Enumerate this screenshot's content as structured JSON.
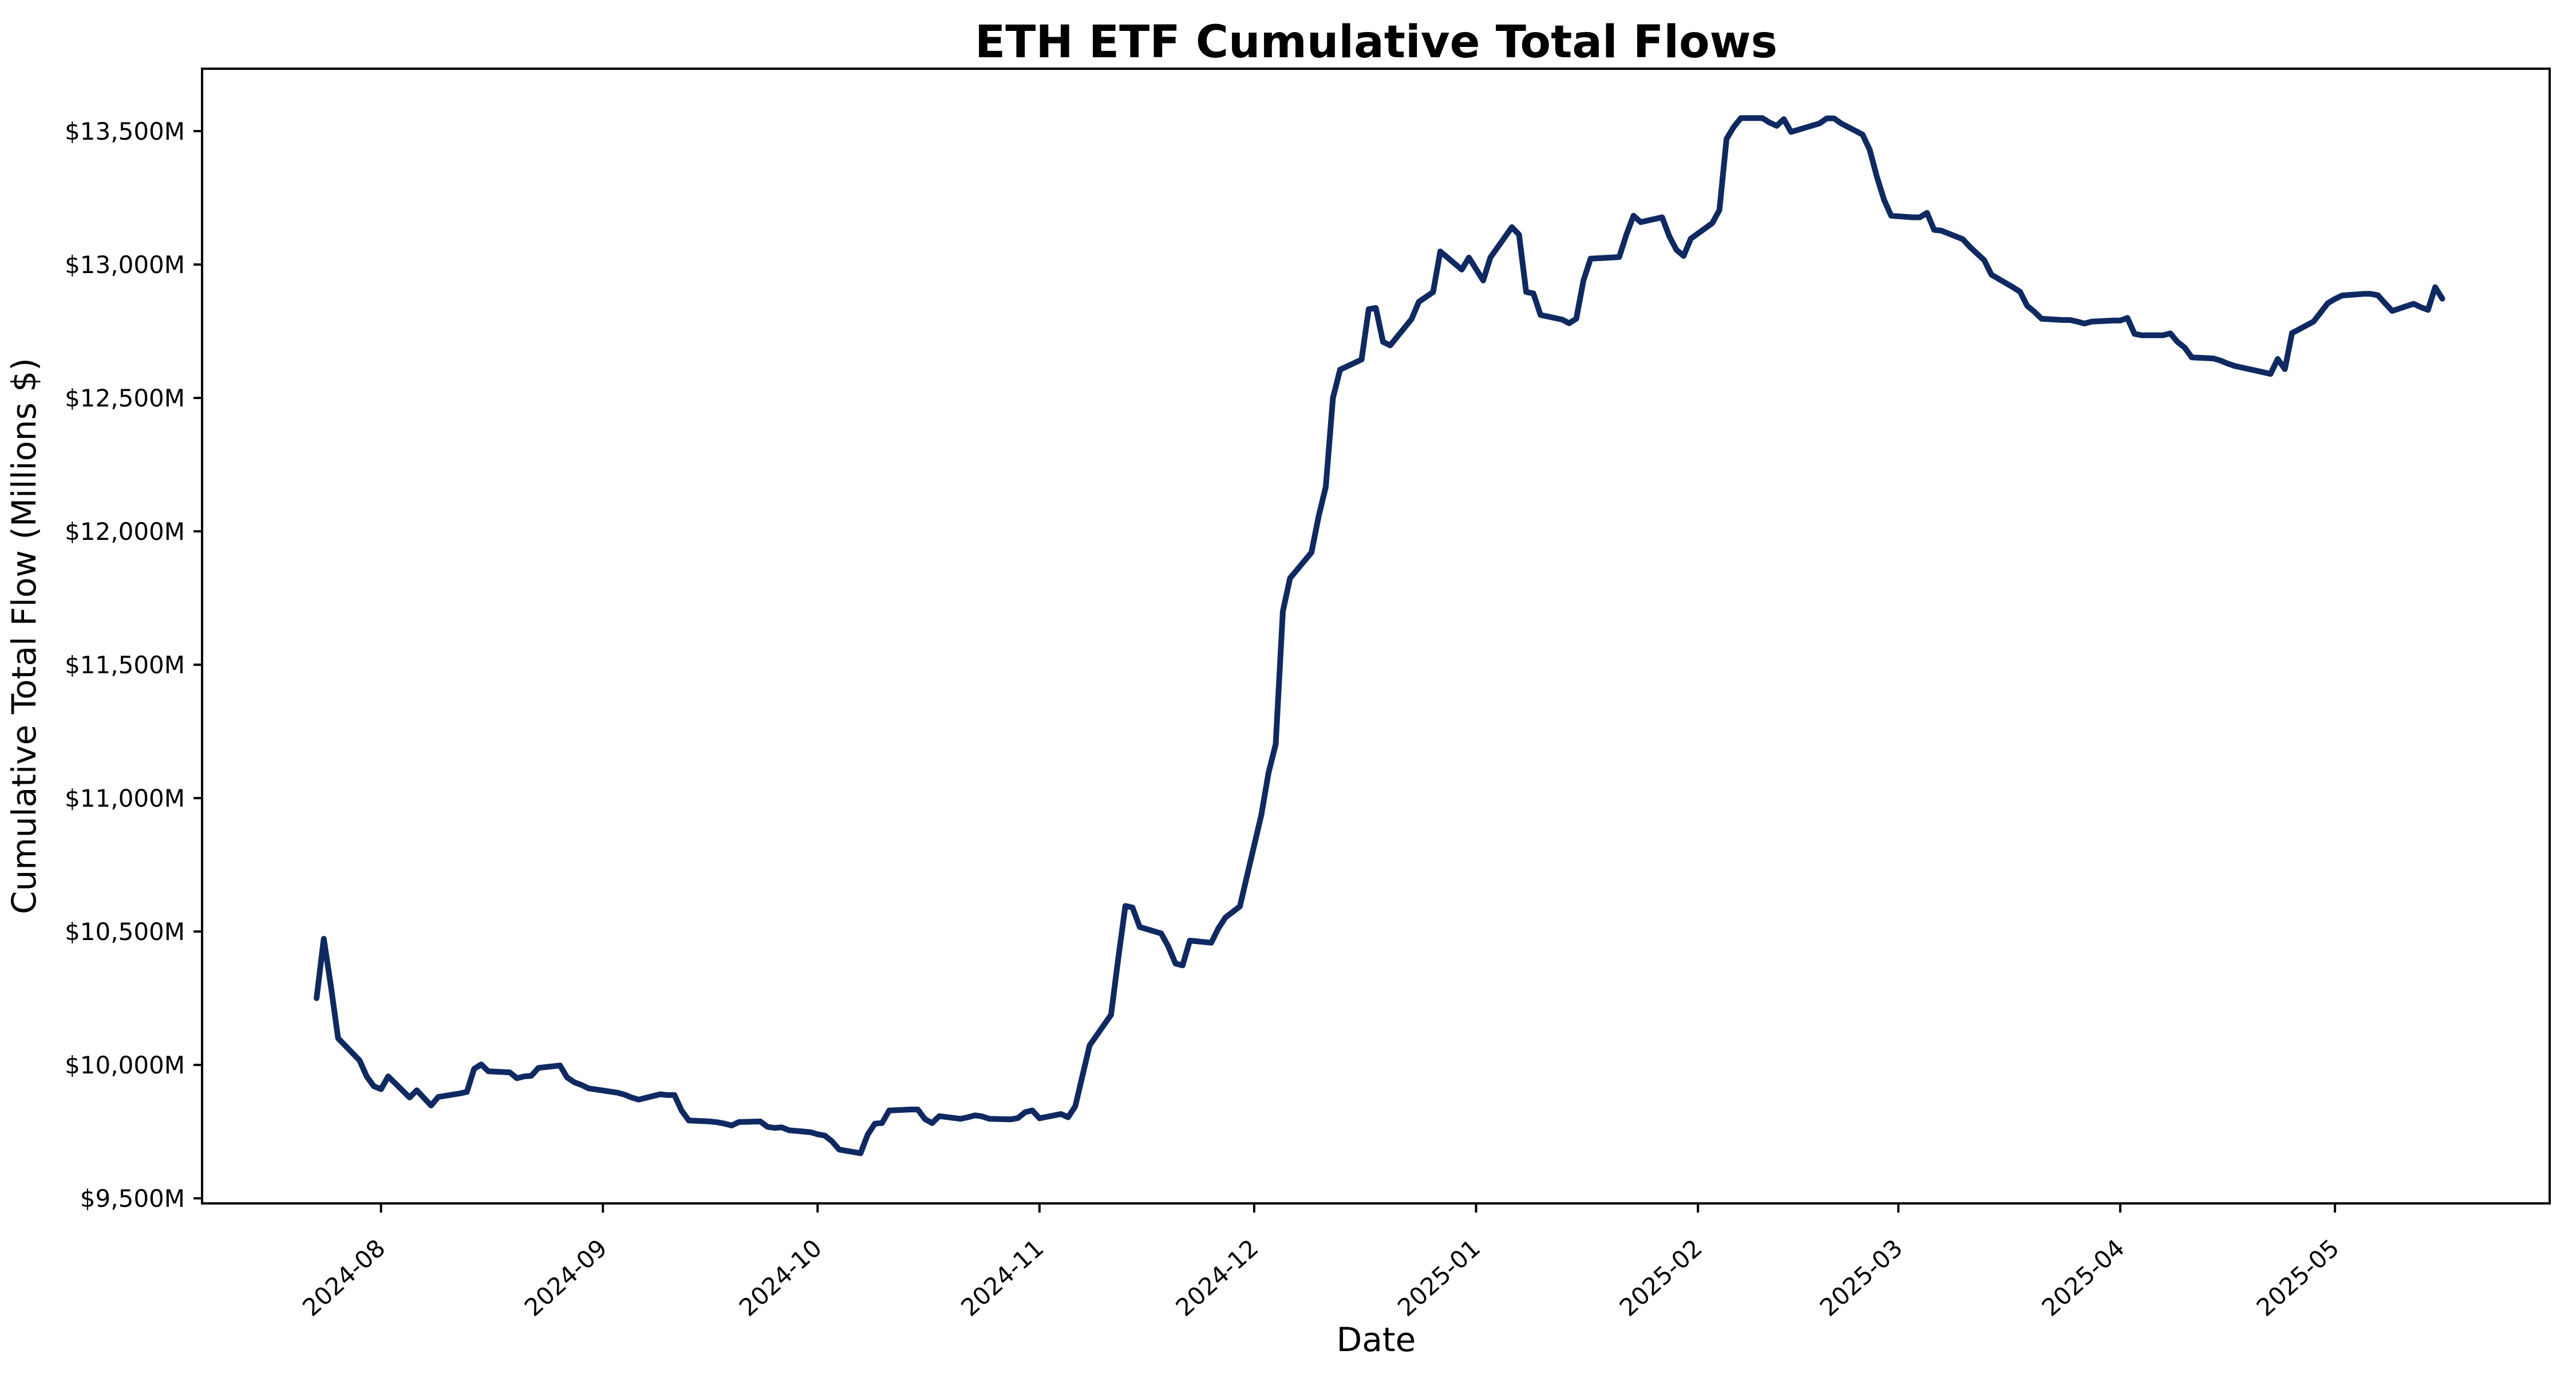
{
  "chart_data": {
    "type": "line",
    "title": "ETH ETF Cumulative Total Flows",
    "xlabel": "Date",
    "ylabel": "Cumulative Total Flow (Millions $)",
    "grid": false,
    "legend_position": "none",
    "background_color": "#ffffff",
    "line_color": "#0f2a63",
    "spine_color": "#000000",
    "ylim": [
      9481,
      13734
    ],
    "xlim": [
      "2024-07-07",
      "2025-05-31"
    ],
    "y_ticks": [
      9500,
      10000,
      10500,
      11000,
      11500,
      12000,
      12500,
      13000,
      13500
    ],
    "y_tick_labels": [
      "$9,500M",
      "$10,000M",
      "$10,500M",
      "$11,000M",
      "$11,500M",
      "$12,000M",
      "$12,500M",
      "$13,000M",
      "$13,500M"
    ],
    "x_ticks": [
      "2024-08-01",
      "2024-09-01",
      "2024-10-01",
      "2024-11-01",
      "2024-12-01",
      "2025-01-01",
      "2025-02-01",
      "2025-03-01",
      "2025-04-01",
      "2025-05-01"
    ],
    "x_tick_labels": [
      "2024-08",
      "2024-09",
      "2024-10",
      "2024-11",
      "2024-12",
      "2025-01",
      "2025-02",
      "2025-03",
      "2025-04",
      "2025-05"
    ],
    "series": [
      {
        "name": "Cumulative Total Flow",
        "points": [
          [
            "2024-07-23",
            10250
          ],
          [
            "2024-07-24",
            10473
          ],
          [
            "2024-07-25",
            10295
          ],
          [
            "2024-07-26",
            10100
          ],
          [
            "2024-07-29",
            10017
          ],
          [
            "2024-07-30",
            9957
          ],
          [
            "2024-07-31",
            9920
          ],
          [
            "2024-08-01",
            9909
          ],
          [
            "2024-08-02",
            9957
          ],
          [
            "2024-08-05",
            9878
          ],
          [
            "2024-08-06",
            9905
          ],
          [
            "2024-08-07",
            9876
          ],
          [
            "2024-08-08",
            9848
          ],
          [
            "2024-08-09",
            9880
          ],
          [
            "2024-08-12",
            9893
          ],
          [
            "2024-08-13",
            9899
          ],
          [
            "2024-08-14",
            9985
          ],
          [
            "2024-08-15",
            10002
          ],
          [
            "2024-08-16",
            9976
          ],
          [
            "2024-08-19",
            9972
          ],
          [
            "2024-08-20",
            9950
          ],
          [
            "2024-08-21",
            9957
          ],
          [
            "2024-08-22",
            9959
          ],
          [
            "2024-08-23",
            9989
          ],
          [
            "2024-08-26",
            9998
          ],
          [
            "2024-08-27",
            9953
          ],
          [
            "2024-08-28",
            9935
          ],
          [
            "2024-08-29",
            9925
          ],
          [
            "2024-08-30",
            9912
          ],
          [
            "2024-09-03",
            9896
          ],
          [
            "2024-09-04",
            9889
          ],
          [
            "2024-09-05",
            9878
          ],
          [
            "2024-09-06",
            9870
          ],
          [
            "2024-09-09",
            9890
          ],
          [
            "2024-09-10",
            9887
          ],
          [
            "2024-09-11",
            9887
          ],
          [
            "2024-09-12",
            9829
          ],
          [
            "2024-09-13",
            9792
          ],
          [
            "2024-09-16",
            9788
          ],
          [
            "2024-09-17",
            9785
          ],
          [
            "2024-09-18",
            9780
          ],
          [
            "2024-09-19",
            9773
          ],
          [
            "2024-09-20",
            9786
          ],
          [
            "2024-09-23",
            9788
          ],
          [
            "2024-09-24",
            9768
          ],
          [
            "2024-09-25",
            9764
          ],
          [
            "2024-09-26",
            9766
          ],
          [
            "2024-09-27",
            9755
          ],
          [
            "2024-09-30",
            9748
          ],
          [
            "2024-10-01",
            9740
          ],
          [
            "2024-10-02",
            9735
          ],
          [
            "2024-10-03",
            9714
          ],
          [
            "2024-10-04",
            9683
          ],
          [
            "2024-10-07",
            9669
          ],
          [
            "2024-10-08",
            9739
          ],
          [
            "2024-10-09",
            9780
          ],
          [
            "2024-10-10",
            9782
          ],
          [
            "2024-10-11",
            9829
          ],
          [
            "2024-10-14",
            9833
          ],
          [
            "2024-10-15",
            9833
          ],
          [
            "2024-10-16",
            9797
          ],
          [
            "2024-10-17",
            9782
          ],
          [
            "2024-10-18",
            9808
          ],
          [
            "2024-10-21",
            9798
          ],
          [
            "2024-10-22",
            9804
          ],
          [
            "2024-10-23",
            9811
          ],
          [
            "2024-10-24",
            9807
          ],
          [
            "2024-10-25",
            9798
          ],
          [
            "2024-10-28",
            9796
          ],
          [
            "2024-10-29",
            9801
          ],
          [
            "2024-10-30",
            9823
          ],
          [
            "2024-10-31",
            9829
          ],
          [
            "2024-11-01",
            9800
          ],
          [
            "2024-11-04",
            9816
          ],
          [
            "2024-11-05",
            9804
          ],
          [
            "2024-11-06",
            9845
          ],
          [
            "2024-11-07",
            9959
          ],
          [
            "2024-11-08",
            10073
          ],
          [
            "2024-11-11",
            10188
          ],
          [
            "2024-11-12",
            10398
          ],
          [
            "2024-11-13",
            10596
          ],
          [
            "2024-11-14",
            10590
          ],
          [
            "2024-11-15",
            10517
          ],
          [
            "2024-11-18",
            10493
          ],
          [
            "2024-11-19",
            10444
          ],
          [
            "2024-11-20",
            10380
          ],
          [
            "2024-11-21",
            10373
          ],
          [
            "2024-11-22",
            10466
          ],
          [
            "2024-11-25",
            10458
          ],
          [
            "2024-11-26",
            10512
          ],
          [
            "2024-11-27",
            10553
          ],
          [
            "2024-11-29",
            10594
          ],
          [
            "2024-12-02",
            10938
          ],
          [
            "2024-12-03",
            11095
          ],
          [
            "2024-12-04",
            11202
          ],
          [
            "2024-12-05",
            11700
          ],
          [
            "2024-12-06",
            11824
          ],
          [
            "2024-12-09",
            11921
          ],
          [
            "2024-12-10",
            12056
          ],
          [
            "2024-12-11",
            12167
          ],
          [
            "2024-12-12",
            12500
          ],
          [
            "2024-12-13",
            12606
          ],
          [
            "2024-12-16",
            12644
          ],
          [
            "2024-12-17",
            12833
          ],
          [
            "2024-12-18",
            12837
          ],
          [
            "2024-12-19",
            12710
          ],
          [
            "2024-12-20",
            12697
          ],
          [
            "2024-12-23",
            12796
          ],
          [
            "2024-12-24",
            12860
          ],
          [
            "2024-12-26",
            12897
          ],
          [
            "2024-12-27",
            13049
          ],
          [
            "2024-12-30",
            12981
          ],
          [
            "2024-12-31",
            13026
          ],
          [
            "2025-01-02",
            12940
          ],
          [
            "2025-01-03",
            13026
          ],
          [
            "2025-01-06",
            13140
          ],
          [
            "2025-01-07",
            13112
          ],
          [
            "2025-01-08",
            12897
          ],
          [
            "2025-01-09",
            12892
          ],
          [
            "2025-01-10",
            12811
          ],
          [
            "2025-01-13",
            12794
          ],
          [
            "2025-01-14",
            12780
          ],
          [
            "2025-01-15",
            12797
          ],
          [
            "2025-01-16",
            12940
          ],
          [
            "2025-01-17",
            13022
          ],
          [
            "2025-01-21",
            13028
          ],
          [
            "2025-01-22",
            13112
          ],
          [
            "2025-01-23",
            13183
          ],
          [
            "2025-01-24",
            13159
          ],
          [
            "2025-01-27",
            13177
          ],
          [
            "2025-01-28",
            13106
          ],
          [
            "2025-01-29",
            13055
          ],
          [
            "2025-01-30",
            13032
          ],
          [
            "2025-01-31",
            13097
          ],
          [
            "2025-02-03",
            13155
          ],
          [
            "2025-02-04",
            13204
          ],
          [
            "2025-02-05",
            13471
          ],
          [
            "2025-02-06",
            13516
          ],
          [
            "2025-02-07",
            13549
          ],
          [
            "2025-02-10",
            13549
          ],
          [
            "2025-02-11",
            13532
          ],
          [
            "2025-02-12",
            13520
          ],
          [
            "2025-02-13",
            13545
          ],
          [
            "2025-02-14",
            13497
          ],
          [
            "2025-02-18",
            13529
          ],
          [
            "2025-02-19",
            13548
          ],
          [
            "2025-02-20",
            13548
          ],
          [
            "2025-02-21",
            13529
          ],
          [
            "2025-02-24",
            13487
          ],
          [
            "2025-02-25",
            13430
          ],
          [
            "2025-02-26",
            13329
          ],
          [
            "2025-02-27",
            13243
          ],
          [
            "2025-02-28",
            13183
          ],
          [
            "2025-03-03",
            13177
          ],
          [
            "2025-03-04",
            13177
          ],
          [
            "2025-03-05",
            13194
          ],
          [
            "2025-03-06",
            13130
          ],
          [
            "2025-03-07",
            13127
          ],
          [
            "2025-03-10",
            13095
          ],
          [
            "2025-03-11",
            13066
          ],
          [
            "2025-03-12",
            13041
          ],
          [
            "2025-03-13",
            13016
          ],
          [
            "2025-03-14",
            12962
          ],
          [
            "2025-03-17",
            12915
          ],
          [
            "2025-03-18",
            12898
          ],
          [
            "2025-03-19",
            12845
          ],
          [
            "2025-03-20",
            12823
          ],
          [
            "2025-03-21",
            12797
          ],
          [
            "2025-03-24",
            12792
          ],
          [
            "2025-03-25",
            12792
          ],
          [
            "2025-03-26",
            12786
          ],
          [
            "2025-03-27",
            12779
          ],
          [
            "2025-03-28",
            12786
          ],
          [
            "2025-03-31",
            12790
          ],
          [
            "2025-04-01",
            12790
          ],
          [
            "2025-04-02",
            12800
          ],
          [
            "2025-04-03",
            12740
          ],
          [
            "2025-04-04",
            12735
          ],
          [
            "2025-04-07",
            12735
          ],
          [
            "2025-04-08",
            12742
          ],
          [
            "2025-04-09",
            12710
          ],
          [
            "2025-04-10",
            12689
          ],
          [
            "2025-04-11",
            12652
          ],
          [
            "2025-04-14",
            12648
          ],
          [
            "2025-04-15",
            12640
          ],
          [
            "2025-04-16",
            12629
          ],
          [
            "2025-04-17",
            12620
          ],
          [
            "2025-04-21",
            12596
          ],
          [
            "2025-04-22",
            12590
          ],
          [
            "2025-04-23",
            12646
          ],
          [
            "2025-04-24",
            12608
          ],
          [
            "2025-04-25",
            12743
          ],
          [
            "2025-04-28",
            12786
          ],
          [
            "2025-04-29",
            12820
          ],
          [
            "2025-04-30",
            12855
          ],
          [
            "2025-05-01",
            12871
          ],
          [
            "2025-05-02",
            12884
          ],
          [
            "2025-05-05",
            12890
          ],
          [
            "2025-05-06",
            12890
          ],
          [
            "2025-05-07",
            12885
          ],
          [
            "2025-05-08",
            12855
          ],
          [
            "2025-05-09",
            12826
          ],
          [
            "2025-05-12",
            12853
          ],
          [
            "2025-05-13",
            12840
          ],
          [
            "2025-05-14",
            12830
          ],
          [
            "2025-05-15",
            12915
          ],
          [
            "2025-05-16",
            12872
          ]
        ]
      }
    ]
  }
}
